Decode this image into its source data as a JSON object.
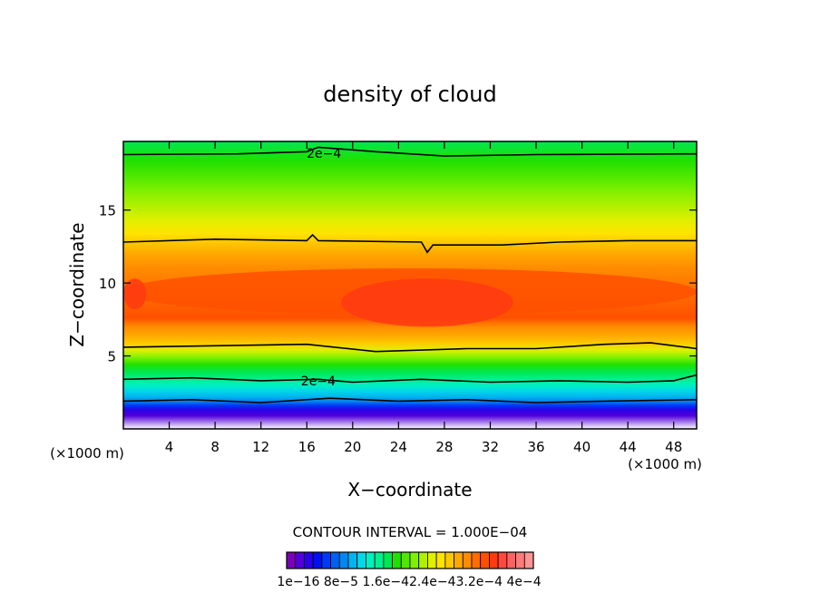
{
  "chart_data": {
    "type": "heatmap",
    "title": "density of cloud",
    "xlabel": "X−coordinate",
    "ylabel": "Z−coordinate",
    "x_unit_left": "(×1000 m)",
    "x_unit_right": "(×1000 m)",
    "xlim": [
      0,
      50
    ],
    "ylim": [
      0,
      19.7
    ],
    "x_ticks": [
      4,
      8,
      12,
      16,
      20,
      24,
      28,
      32,
      36,
      40,
      44,
      48
    ],
    "x_tick_labels": [
      "4",
      "8",
      "12",
      "16",
      "20",
      "24",
      "28",
      "32",
      "36",
      "40",
      "44",
      "48"
    ],
    "y_ticks": [
      5,
      10,
      15
    ],
    "y_tick_labels": [
      "5",
      "10",
      "15"
    ],
    "contour_interval_text": "CONTOUR INTERVAL = 1.000E−04",
    "contour_labels": [
      "2e−4",
      "2e−4"
    ],
    "contour_label_positions": [
      [
        17.5,
        18.9
      ],
      [
        17.0,
        3.3
      ]
    ],
    "contour_lines": [
      {
        "level": "2e-4",
        "points": [
          [
            0,
            18.8
          ],
          [
            10,
            18.85
          ],
          [
            16,
            19.0
          ],
          [
            17,
            19.3
          ],
          [
            22,
            19.0
          ],
          [
            28,
            18.7
          ],
          [
            36,
            18.8
          ],
          [
            50,
            18.85
          ]
        ]
      },
      {
        "level": "2e-4",
        "points": [
          [
            0,
            12.8
          ],
          [
            8,
            13.0
          ],
          [
            16,
            12.9
          ],
          [
            16.5,
            13.3
          ],
          [
            17,
            12.9
          ],
          [
            26,
            12.8
          ],
          [
            26.5,
            12.1
          ],
          [
            27,
            12.6
          ],
          [
            33,
            12.6
          ],
          [
            38,
            12.8
          ],
          [
            44,
            12.9
          ],
          [
            50,
            12.9
          ]
        ]
      },
      {
        "level": "2e-4",
        "points": [
          [
            0,
            5.6
          ],
          [
            8,
            5.7
          ],
          [
            16,
            5.8
          ],
          [
            22,
            5.3
          ],
          [
            30,
            5.5
          ],
          [
            36,
            5.5
          ],
          [
            42,
            5.8
          ],
          [
            46,
            5.9
          ],
          [
            50,
            5.5
          ]
        ]
      },
      {
        "level": "2e-4",
        "points": [
          [
            0,
            3.4
          ],
          [
            6,
            3.5
          ],
          [
            12,
            3.3
          ],
          [
            17,
            3.4
          ],
          [
            20,
            3.2
          ],
          [
            26,
            3.4
          ],
          [
            32,
            3.2
          ],
          [
            38,
            3.3
          ],
          [
            44,
            3.2
          ],
          [
            48,
            3.3
          ],
          [
            50,
            3.7
          ]
        ]
      },
      {
        "level": "2e-4",
        "points": [
          [
            0,
            1.9
          ],
          [
            6,
            2.0
          ],
          [
            12,
            1.8
          ],
          [
            18,
            2.1
          ],
          [
            24,
            1.9
          ],
          [
            30,
            2.0
          ],
          [
            36,
            1.8
          ],
          [
            42,
            1.9
          ],
          [
            50,
            2.0
          ]
        ]
      }
    ],
    "color_levels": [
      "1e−16",
      "8e−5",
      "1.6e−4",
      "2.4e−4",
      "3.2e−4",
      "4e−4"
    ],
    "colorbar_tick_text": "1e−16 8e−5 1.6e−42.4e−43.2e−4 4e−4",
    "colorbar_colors": [
      "#7a00b8",
      "#5200d8",
      "#2a00e8",
      "#0010f0",
      "#0038f4",
      "#0060f4",
      "#0088f0",
      "#00b4f0",
      "#00d8e8",
      "#00f0c0",
      "#00f090",
      "#00e850",
      "#20e000",
      "#50e800",
      "#80f000",
      "#b0f000",
      "#e0f000",
      "#ffe400",
      "#ffc800",
      "#ffa800",
      "#ff8c00",
      "#ff6c00",
      "#ff5000",
      "#ff3a10",
      "#ff4840",
      "#ff6060",
      "#ff7a7a",
      "#ff9494"
    ],
    "profile": [
      {
        "z": 0.0,
        "color": "#ffffff"
      },
      {
        "z": 0.9,
        "color": "#5200d8"
      },
      {
        "z": 1.3,
        "color": "#2a00e8"
      },
      {
        "z": 1.6,
        "color": "#0038f4"
      },
      {
        "z": 1.9,
        "color": "#0088f0"
      },
      {
        "z": 2.2,
        "color": "#00b4f0"
      },
      {
        "z": 2.6,
        "color": "#00d8e8"
      },
      {
        "z": 3.0,
        "color": "#00f0c0"
      },
      {
        "z": 3.4,
        "color": "#00f090"
      },
      {
        "z": 3.9,
        "color": "#00e850"
      },
      {
        "z": 4.4,
        "color": "#20e000"
      },
      {
        "z": 4.9,
        "color": "#80f000"
      },
      {
        "z": 5.4,
        "color": "#e0f000"
      },
      {
        "z": 5.9,
        "color": "#ffc800"
      },
      {
        "z": 6.4,
        "color": "#ffa800"
      },
      {
        "z": 7.0,
        "color": "#ff8c00"
      },
      {
        "z": 7.6,
        "color": "#ff5000"
      },
      {
        "z": 11.0,
        "color": "#ff8c00"
      },
      {
        "z": 12.0,
        "color": "#ffa800"
      },
      {
        "z": 12.8,
        "color": "#ffc800"
      },
      {
        "z": 13.4,
        "color": "#ffe400"
      },
      {
        "z": 14.3,
        "color": "#e0f000"
      },
      {
        "z": 15.3,
        "color": "#b0f000"
      },
      {
        "z": 16.3,
        "color": "#80f000"
      },
      {
        "z": 17.3,
        "color": "#50e800"
      },
      {
        "z": 18.4,
        "color": "#20e000"
      },
      {
        "z": 19.7,
        "color": "#00e850"
      }
    ],
    "core_regions": [
      {
        "x": [
          0,
          50
        ],
        "z": [
          7.8,
          11.0
        ],
        "color": "#ff5000"
      },
      {
        "x": [
          19,
          34
        ],
        "z": [
          7.0,
          10.3
        ],
        "color": "#ff3a10"
      },
      {
        "x": [
          0,
          2
        ],
        "z": [
          8.2,
          10.3
        ],
        "color": "#ff3a10"
      }
    ],
    "legend": "bottom-center colorbar",
    "grid": false
  }
}
